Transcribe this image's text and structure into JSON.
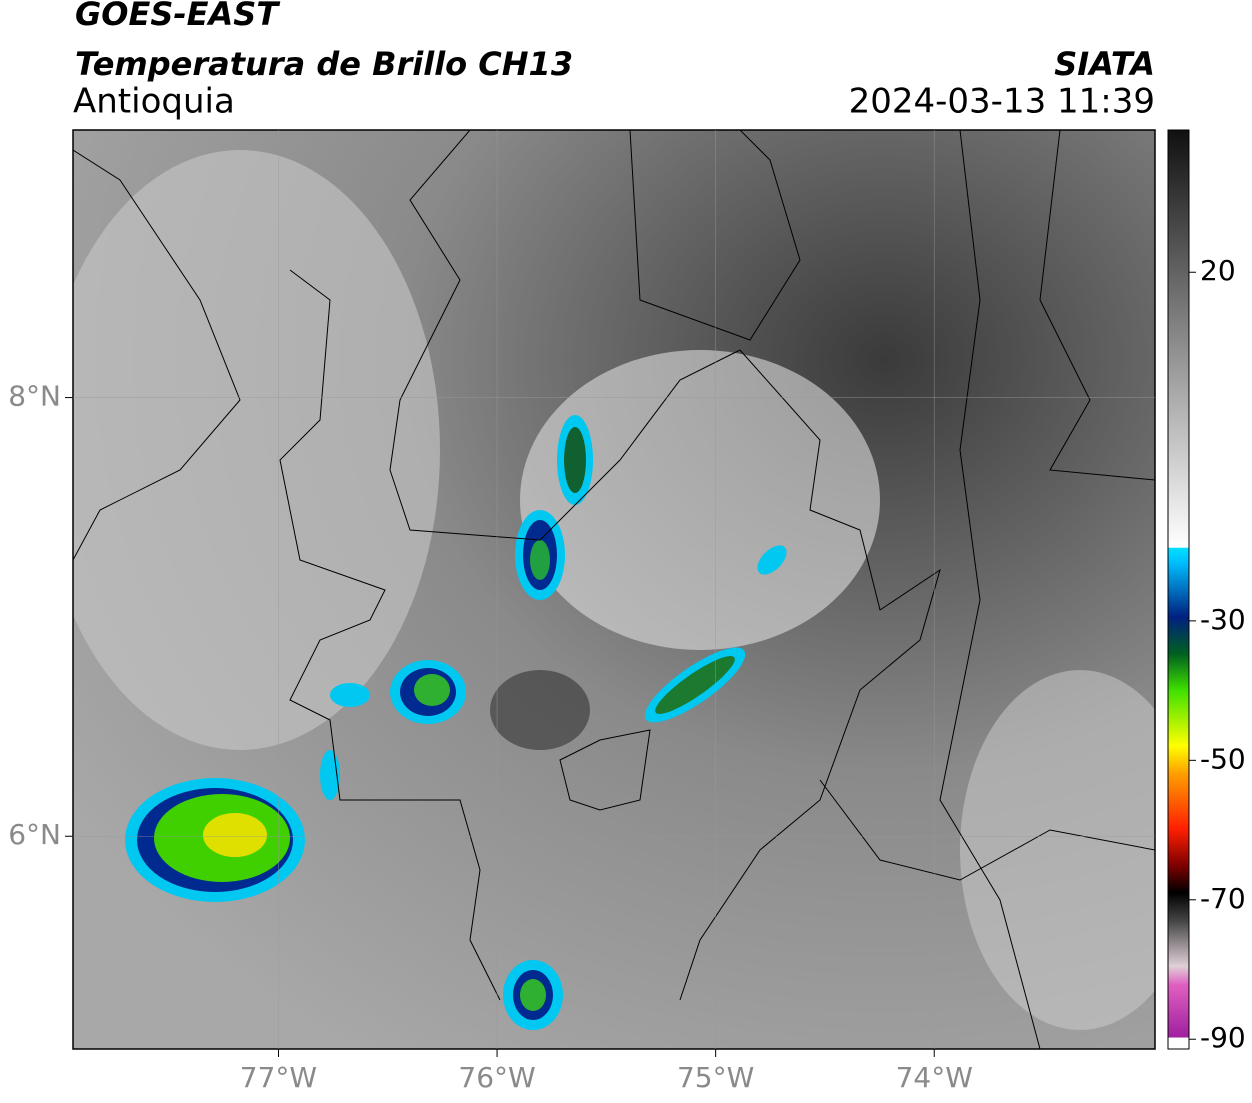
{
  "header": {
    "satellite": "GOES-EAST",
    "product": "Temperatura de Brillo CH13",
    "region": "Antioquia",
    "source": "SIATA",
    "timestamp": "2024-03-13 11:39"
  },
  "map": {
    "xlim": [
      -77.94,
      -72.99
    ],
    "ylim": [
      5.03,
      9.22
    ],
    "xticks": [
      {
        "value": -77,
        "label": "77°W"
      },
      {
        "value": -76,
        "label": "76°W"
      },
      {
        "value": -75,
        "label": "75°W"
      },
      {
        "value": -74,
        "label": "74°W"
      }
    ],
    "yticks": [
      {
        "value": 8,
        "label": "8°N"
      },
      {
        "value": 6,
        "label": "6°N"
      }
    ],
    "grid": true
  },
  "colorbar": {
    "lim": [
      -91.4,
      40.4
    ],
    "ticks": [
      20,
      -30,
      -50,
      -70,
      -90
    ]
  }
}
